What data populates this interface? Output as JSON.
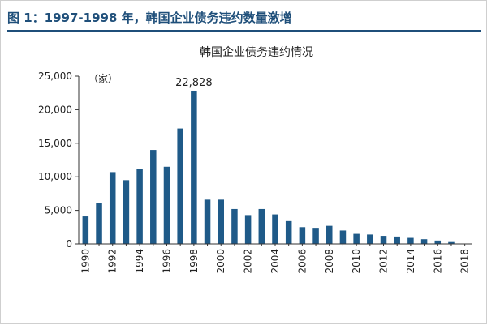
{
  "figure": {
    "title": "图 1：1997-1998 年，韩国企业债务违约数量激增"
  },
  "chart_data": {
    "type": "bar",
    "title": "韩国企业债务违约情况",
    "unit_label": "（家）",
    "xlabel": "",
    "ylabel": "",
    "ylim": [
      0,
      25000
    ],
    "yticks": [
      0,
      5000,
      10000,
      15000,
      20000,
      25000
    ],
    "ytick_labels": [
      "0",
      "5,000",
      "10,000",
      "15,000",
      "20,000",
      "25,000"
    ],
    "x_tick_labels": [
      "1990",
      "1992",
      "1994",
      "1996",
      "1998",
      "2000",
      "2002",
      "2004",
      "2006",
      "2008",
      "2010",
      "2012",
      "2014",
      "2016",
      "2018"
    ],
    "grid": false,
    "legend": "none",
    "bar_color": "#1f5a88",
    "categories": [
      "1990",
      "1991",
      "1992",
      "1993",
      "1994",
      "1995",
      "1996",
      "1997",
      "1998",
      "1999",
      "2000",
      "2001",
      "2002",
      "2003",
      "2004",
      "2005",
      "2006",
      "2007",
      "2008",
      "2009",
      "2010",
      "2011",
      "2012",
      "2013",
      "2014",
      "2015",
      "2016",
      "2017",
      "2018"
    ],
    "values": [
      4100,
      6100,
      10700,
      9500,
      11200,
      14000,
      11500,
      17200,
      22828,
      6600,
      6600,
      5200,
      4300,
      5200,
      4400,
      3400,
      2500,
      2400,
      2700,
      2000,
      1500,
      1400,
      1200,
      1100,
      900,
      700,
      500,
      400,
      0
    ],
    "annotations": [
      {
        "category": "1998",
        "text": "22,828"
      }
    ]
  }
}
